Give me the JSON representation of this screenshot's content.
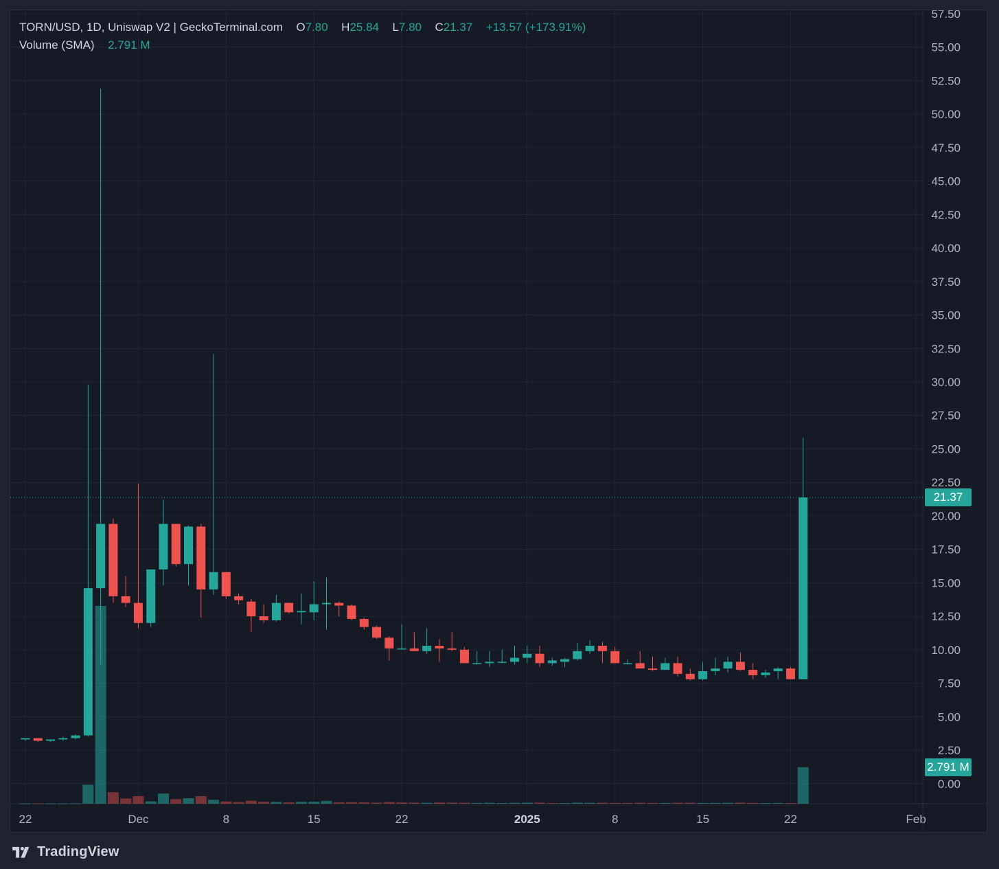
{
  "legend": {
    "symbol": "TORN/USD, 1D, Uniswap V2 | GeckoTerminal.com",
    "o_label": "O",
    "o_value": "7.80",
    "h_label": "H",
    "h_value": "25.84",
    "l_label": "L",
    "l_value": "7.80",
    "c_label": "C",
    "c_value": "21.37",
    "change": "+13.57 (+173.91%)",
    "volume_label": "Volume (SMA)",
    "volume_value": "2.791 M"
  },
  "price_tag": "21.37",
  "volume_tag": "2.791 M",
  "footer": {
    "brand": "TradingView"
  },
  "colors": {
    "up": "#26a69a",
    "down": "#ef5350",
    "background": "#161a25",
    "grid": "#232733",
    "text": "#b2b5be"
  },
  "chart_data": {
    "type": "candlestick",
    "title": "TORN/USD, 1D, Uniswap V2 | GeckoTerminal.com",
    "y_axis_ticks": [
      "0.00",
      "2.50",
      "5.00",
      "7.50",
      "10.00",
      "12.50",
      "15.00",
      "17.50",
      "20.00",
      "22.50",
      "25.00",
      "27.50",
      "30.00",
      "32.50",
      "35.00",
      "37.50",
      "40.00",
      "42.50",
      "45.00",
      "47.50",
      "50.00",
      "52.50",
      "55.00",
      "57.50"
    ],
    "ylim": [
      -1.5,
      57.5
    ],
    "x_axis_labels": [
      {
        "label": "22",
        "date": "2024-11-22"
      },
      {
        "label": "Dec",
        "date": "2024-12-01"
      },
      {
        "label": "8",
        "date": "2024-12-08"
      },
      {
        "label": "15",
        "date": "2024-12-15"
      },
      {
        "label": "22",
        "date": "2024-12-22"
      },
      {
        "label": "2025",
        "date": "2025-01-01"
      },
      {
        "label": "8",
        "date": "2025-01-08"
      },
      {
        "label": "15",
        "date": "2025-01-15"
      },
      {
        "label": "22",
        "date": "2025-01-22"
      },
      {
        "label": "Feb",
        "date": "2025-02-01"
      }
    ],
    "grid": true,
    "last_price": 21.37,
    "series": [
      {
        "name": "TORN/USD",
        "type": "candlestick",
        "fields": [
          "date",
          "open",
          "high",
          "low",
          "close"
        ],
        "values": [
          [
            "2024-11-22",
            3.3,
            3.4,
            3.2,
            3.4
          ],
          [
            "2024-11-23",
            3.4,
            3.4,
            3.1,
            3.2
          ],
          [
            "2024-11-24",
            3.2,
            3.3,
            3.1,
            3.3
          ],
          [
            "2024-11-25",
            3.3,
            3.5,
            3.2,
            3.4
          ],
          [
            "2024-11-26",
            3.4,
            3.7,
            3.3,
            3.6
          ],
          [
            "2024-11-27",
            3.6,
            29.8,
            3.5,
            14.6
          ],
          [
            "2024-11-28",
            14.6,
            51.9,
            8.9,
            19.4
          ],
          [
            "2024-11-29",
            19.4,
            19.8,
            13.5,
            14.0
          ],
          [
            "2024-11-30",
            14.0,
            15.5,
            13.2,
            13.5
          ],
          [
            "2024-12-01",
            13.5,
            22.4,
            11.6,
            12.0
          ],
          [
            "2024-12-02",
            12.0,
            16.0,
            11.7,
            16.0
          ],
          [
            "2024-12-03",
            16.0,
            21.2,
            14.8,
            19.4
          ],
          [
            "2024-12-04",
            19.4,
            19.4,
            16.2,
            16.4
          ],
          [
            "2024-12-05",
            16.4,
            19.3,
            14.8,
            19.2
          ],
          [
            "2024-12-06",
            19.2,
            19.4,
            12.4,
            14.5
          ],
          [
            "2024-12-07",
            14.5,
            32.1,
            14.1,
            15.8
          ],
          [
            "2024-12-08",
            15.8,
            15.8,
            13.8,
            14.0
          ],
          [
            "2024-12-09",
            14.0,
            14.2,
            13.4,
            13.7
          ],
          [
            "2024-12-10",
            13.6,
            13.8,
            11.3,
            12.5
          ],
          [
            "2024-12-11",
            12.5,
            13.4,
            12.0,
            12.2
          ],
          [
            "2024-12-12",
            12.2,
            14.1,
            12.1,
            13.5
          ],
          [
            "2024-12-13",
            13.5,
            13.5,
            12.7,
            12.8
          ],
          [
            "2024-12-14",
            12.8,
            14.2,
            11.9,
            12.9
          ],
          [
            "2024-12-15",
            12.8,
            15.1,
            12.2,
            13.4
          ],
          [
            "2024-12-16",
            13.4,
            15.4,
            11.5,
            13.5
          ],
          [
            "2024-12-17",
            13.5,
            13.6,
            12.5,
            13.3
          ],
          [
            "2024-12-18",
            13.3,
            13.4,
            12.2,
            12.3
          ],
          [
            "2024-12-19",
            12.3,
            12.4,
            11.5,
            11.7
          ],
          [
            "2024-12-20",
            11.7,
            11.8,
            10.8,
            10.9
          ],
          [
            "2024-12-21",
            10.9,
            11.0,
            9.2,
            10.1
          ],
          [
            "2024-12-22",
            10.1,
            11.9,
            10.0,
            10.1
          ],
          [
            "2024-12-23",
            10.1,
            11.3,
            9.9,
            9.9
          ],
          [
            "2024-12-24",
            9.9,
            11.6,
            9.7,
            10.3
          ],
          [
            "2024-12-25",
            10.3,
            10.8,
            9.1,
            10.1
          ],
          [
            "2024-12-26",
            10.1,
            11.3,
            9.9,
            10.0
          ],
          [
            "2024-12-27",
            10.0,
            10.2,
            9.0,
            9.0
          ],
          [
            "2024-12-28",
            9.0,
            9.9,
            8.9,
            9.0
          ],
          [
            "2024-12-29",
            9.0,
            9.9,
            8.7,
            9.1
          ],
          [
            "2024-12-30",
            9.1,
            10.0,
            9.0,
            9.1
          ],
          [
            "2024-12-31",
            9.1,
            10.3,
            8.9,
            9.4
          ],
          [
            "2025-01-01",
            9.4,
            10.3,
            9.0,
            9.7
          ],
          [
            "2025-01-02",
            9.7,
            10.3,
            8.7,
            9.0
          ],
          [
            "2025-01-03",
            9.0,
            9.4,
            8.8,
            9.2
          ],
          [
            "2025-01-04",
            9.1,
            9.4,
            8.7,
            9.3
          ],
          [
            "2025-01-05",
            9.3,
            10.5,
            9.2,
            9.9
          ],
          [
            "2025-01-06",
            9.9,
            10.7,
            9.7,
            10.3
          ],
          [
            "2025-01-07",
            10.3,
            10.6,
            9.0,
            9.9
          ],
          [
            "2025-01-08",
            9.9,
            10.2,
            9.1,
            9.0
          ],
          [
            "2025-01-09",
            9.0,
            9.3,
            8.9,
            9.0
          ],
          [
            "2025-01-10",
            9.0,
            9.9,
            8.8,
            8.6
          ],
          [
            "2025-01-11",
            8.6,
            9.5,
            8.4,
            8.5
          ],
          [
            "2025-01-12",
            8.5,
            9.4,
            8.5,
            9.0
          ],
          [
            "2025-01-13",
            9.0,
            9.5,
            8.0,
            8.2
          ],
          [
            "2025-01-14",
            8.2,
            8.6,
            7.7,
            7.8
          ],
          [
            "2025-01-15",
            7.8,
            9.1,
            7.7,
            8.4
          ],
          [
            "2025-01-16",
            8.4,
            9.4,
            8.1,
            8.6
          ],
          [
            "2025-01-17",
            8.6,
            9.5,
            8.3,
            9.1
          ],
          [
            "2025-01-18",
            9.1,
            9.8,
            8.4,
            8.5
          ],
          [
            "2025-01-19",
            8.5,
            9.0,
            7.8,
            8.1
          ],
          [
            "2025-01-20",
            8.1,
            8.5,
            7.9,
            8.3
          ],
          [
            "2025-01-21",
            8.4,
            8.7,
            7.8,
            8.6
          ],
          [
            "2025-01-22",
            8.6,
            8.7,
            7.8,
            7.8
          ],
          [
            "2025-01-23",
            7.8,
            25.84,
            7.8,
            21.37
          ]
        ]
      },
      {
        "name": "Volume (SMA)",
        "type": "bar",
        "unit": "M",
        "fields": [
          "date",
          "volume",
          "direction"
        ],
        "values": [
          [
            "2024-11-22",
            0.02,
            "up"
          ],
          [
            "2024-11-23",
            0.02,
            "down"
          ],
          [
            "2024-11-24",
            0.02,
            "up"
          ],
          [
            "2024-11-25",
            0.02,
            "up"
          ],
          [
            "2024-11-26",
            0.03,
            "up"
          ],
          [
            "2024-11-27",
            1.45,
            "up"
          ],
          [
            "2024-11-28",
            15.1,
            "up"
          ],
          [
            "2024-11-29",
            0.88,
            "down"
          ],
          [
            "2024-11-30",
            0.4,
            "down"
          ],
          [
            "2024-12-01",
            0.58,
            "down"
          ],
          [
            "2024-12-02",
            0.18,
            "up"
          ],
          [
            "2024-12-03",
            0.78,
            "up"
          ],
          [
            "2024-12-04",
            0.35,
            "down"
          ],
          [
            "2024-12-05",
            0.42,
            "up"
          ],
          [
            "2024-12-06",
            0.58,
            "down"
          ],
          [
            "2024-12-07",
            0.3,
            "up"
          ],
          [
            "2024-12-08",
            0.17,
            "down"
          ],
          [
            "2024-12-09",
            0.12,
            "down"
          ],
          [
            "2024-12-10",
            0.23,
            "down"
          ],
          [
            "2024-12-11",
            0.15,
            "down"
          ],
          [
            "2024-12-12",
            0.13,
            "up"
          ],
          [
            "2024-12-13",
            0.1,
            "down"
          ],
          [
            "2024-12-14",
            0.14,
            "up"
          ],
          [
            "2024-12-15",
            0.15,
            "up"
          ],
          [
            "2024-12-16",
            0.22,
            "up"
          ],
          [
            "2024-12-17",
            0.1,
            "down"
          ],
          [
            "2024-12-18",
            0.11,
            "down"
          ],
          [
            "2024-12-19",
            0.1,
            "down"
          ],
          [
            "2024-12-20",
            0.08,
            "down"
          ],
          [
            "2024-12-21",
            0.12,
            "down"
          ],
          [
            "2024-12-22",
            0.09,
            "down"
          ],
          [
            "2024-12-23",
            0.08,
            "down"
          ],
          [
            "2024-12-24",
            0.07,
            "up"
          ],
          [
            "2024-12-25",
            0.09,
            "down"
          ],
          [
            "2024-12-26",
            0.08,
            "down"
          ],
          [
            "2024-12-27",
            0.07,
            "down"
          ],
          [
            "2024-12-28",
            0.06,
            "up"
          ],
          [
            "2024-12-29",
            0.07,
            "up"
          ],
          [
            "2024-12-30",
            0.05,
            "up"
          ],
          [
            "2024-12-31",
            0.07,
            "up"
          ],
          [
            "2025-01-01",
            0.08,
            "up"
          ],
          [
            "2025-01-02",
            0.08,
            "down"
          ],
          [
            "2025-01-03",
            0.05,
            "down"
          ],
          [
            "2025-01-04",
            0.05,
            "up"
          ],
          [
            "2025-01-05",
            0.08,
            "up"
          ],
          [
            "2025-01-06",
            0.07,
            "up"
          ],
          [
            "2025-01-07",
            0.07,
            "down"
          ],
          [
            "2025-01-08",
            0.06,
            "down"
          ],
          [
            "2025-01-09",
            0.06,
            "down"
          ],
          [
            "2025-01-10",
            0.07,
            "down"
          ],
          [
            "2025-01-11",
            0.06,
            "down"
          ],
          [
            "2025-01-12",
            0.06,
            "up"
          ],
          [
            "2025-01-13",
            0.07,
            "down"
          ],
          [
            "2025-01-14",
            0.07,
            "down"
          ],
          [
            "2025-01-15",
            0.06,
            "up"
          ],
          [
            "2025-01-16",
            0.06,
            "up"
          ],
          [
            "2025-01-17",
            0.07,
            "up"
          ],
          [
            "2025-01-18",
            0.08,
            "down"
          ],
          [
            "2025-01-19",
            0.06,
            "down"
          ],
          [
            "2025-01-20",
            0.05,
            "up"
          ],
          [
            "2025-01-21",
            0.06,
            "up"
          ],
          [
            "2025-01-22",
            0.05,
            "down"
          ],
          [
            "2025-01-23",
            2.791,
            "up"
          ]
        ]
      }
    ]
  }
}
